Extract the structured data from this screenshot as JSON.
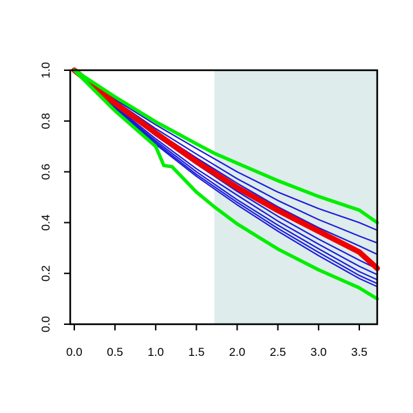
{
  "chart_data": {
    "type": "line",
    "title": "",
    "xlabel": "",
    "ylabel": "",
    "xlim": [
      -0.05,
      3.72
    ],
    "ylim": [
      0,
      1
    ],
    "x_ticks": [
      "0.0",
      "0.5",
      "1.0",
      "1.5",
      "2.0",
      "2.5",
      "3.0",
      "3.5"
    ],
    "y_ticks": [
      "0.0",
      "0.2",
      "0.4",
      "0.6",
      "0.8",
      "1.0"
    ],
    "grid": false,
    "legend": "none",
    "shaded_region": {
      "x_start": 1.72,
      "x_end": 3.72,
      "color": "#deecec"
    },
    "colors": {
      "bound": "#00ee00",
      "estimate": "#ee0000",
      "sample": "#1a1ad9"
    },
    "series": [
      {
        "role": "bound",
        "x": [
          0,
          0.5,
          1.0,
          1.5,
          1.72,
          2.0,
          2.5,
          3.0,
          3.5,
          3.72
        ],
        "values": [
          1.0,
          0.895,
          0.797,
          0.71,
          0.673,
          0.634,
          0.565,
          0.503,
          0.449,
          0.4
        ]
      },
      {
        "role": "bound",
        "x": [
          0,
          0.5,
          1.0,
          1.1,
          1.2,
          1.5,
          1.72,
          2.0,
          2.5,
          3.0,
          3.5,
          3.72
        ],
        "values": [
          1.0,
          0.84,
          0.7,
          0.625,
          0.62,
          0.52,
          0.462,
          0.395,
          0.296,
          0.214,
          0.143,
          0.1
        ]
      },
      {
        "role": "estimate",
        "x": [
          0,
          0.5,
          1.0,
          1.5,
          1.72,
          2.0,
          2.5,
          3.0,
          3.5,
          3.72
        ],
        "values": [
          1.0,
          0.87,
          0.753,
          0.64,
          0.595,
          0.538,
          0.448,
          0.366,
          0.284,
          0.22
        ]
      },
      {
        "role": "sample",
        "x": [
          0,
          0.5,
          1.0,
          1.5,
          2.0,
          2.5,
          3.0,
          3.5,
          3.72
        ],
        "values": [
          1.0,
          0.885,
          0.785,
          0.692,
          0.6,
          0.52,
          0.455,
          0.4,
          0.37
        ]
      },
      {
        "role": "sample",
        "x": [
          0,
          0.5,
          1.0,
          1.5,
          2.0,
          2.5,
          3.0,
          3.5,
          3.72
        ],
        "values": [
          1.0,
          0.88,
          0.77,
          0.67,
          0.573,
          0.487,
          0.412,
          0.347,
          0.32
        ]
      },
      {
        "role": "sample",
        "x": [
          0,
          0.5,
          1.0,
          1.5,
          2.0,
          2.5,
          3.0,
          3.5,
          3.72
        ],
        "values": [
          1.0,
          0.875,
          0.76,
          0.655,
          0.555,
          0.462,
          0.38,
          0.308,
          0.275
        ]
      },
      {
        "role": "sample",
        "x": [
          0,
          0.5,
          1.0,
          1.5,
          2.0,
          2.5,
          3.0,
          3.5,
          3.72
        ],
        "values": [
          1.0,
          0.865,
          0.742,
          0.63,
          0.523,
          0.425,
          0.335,
          0.252,
          0.218
        ]
      },
      {
        "role": "sample",
        "x": [
          0,
          0.5,
          1.0,
          1.5,
          2.0,
          2.5,
          3.0,
          3.5,
          3.72
        ],
        "values": [
          1.0,
          0.858,
          0.73,
          0.612,
          0.508,
          0.406,
          0.315,
          0.228,
          0.195
        ]
      },
      {
        "role": "sample",
        "x": [
          0,
          0.5,
          1.0,
          1.5,
          2.0,
          2.5,
          3.0,
          3.5,
          3.72
        ],
        "values": [
          1.0,
          0.854,
          0.722,
          0.6,
          0.49,
          0.39,
          0.297,
          0.207,
          0.175
        ]
      },
      {
        "role": "sample",
        "x": [
          0,
          0.5,
          1.0,
          1.5,
          2.0,
          2.5,
          3.0,
          3.5,
          3.72
        ],
        "values": [
          1.0,
          0.85,
          0.715,
          0.59,
          0.48,
          0.377,
          0.283,
          0.192,
          0.16
        ]
      },
      {
        "role": "sample",
        "x": [
          0,
          0.5,
          1.0,
          1.5,
          2.0,
          2.5,
          3.0,
          3.5,
          3.72
        ],
        "values": [
          1.0,
          0.846,
          0.708,
          0.582,
          0.47,
          0.366,
          0.27,
          0.18,
          0.148
        ]
      }
    ]
  }
}
